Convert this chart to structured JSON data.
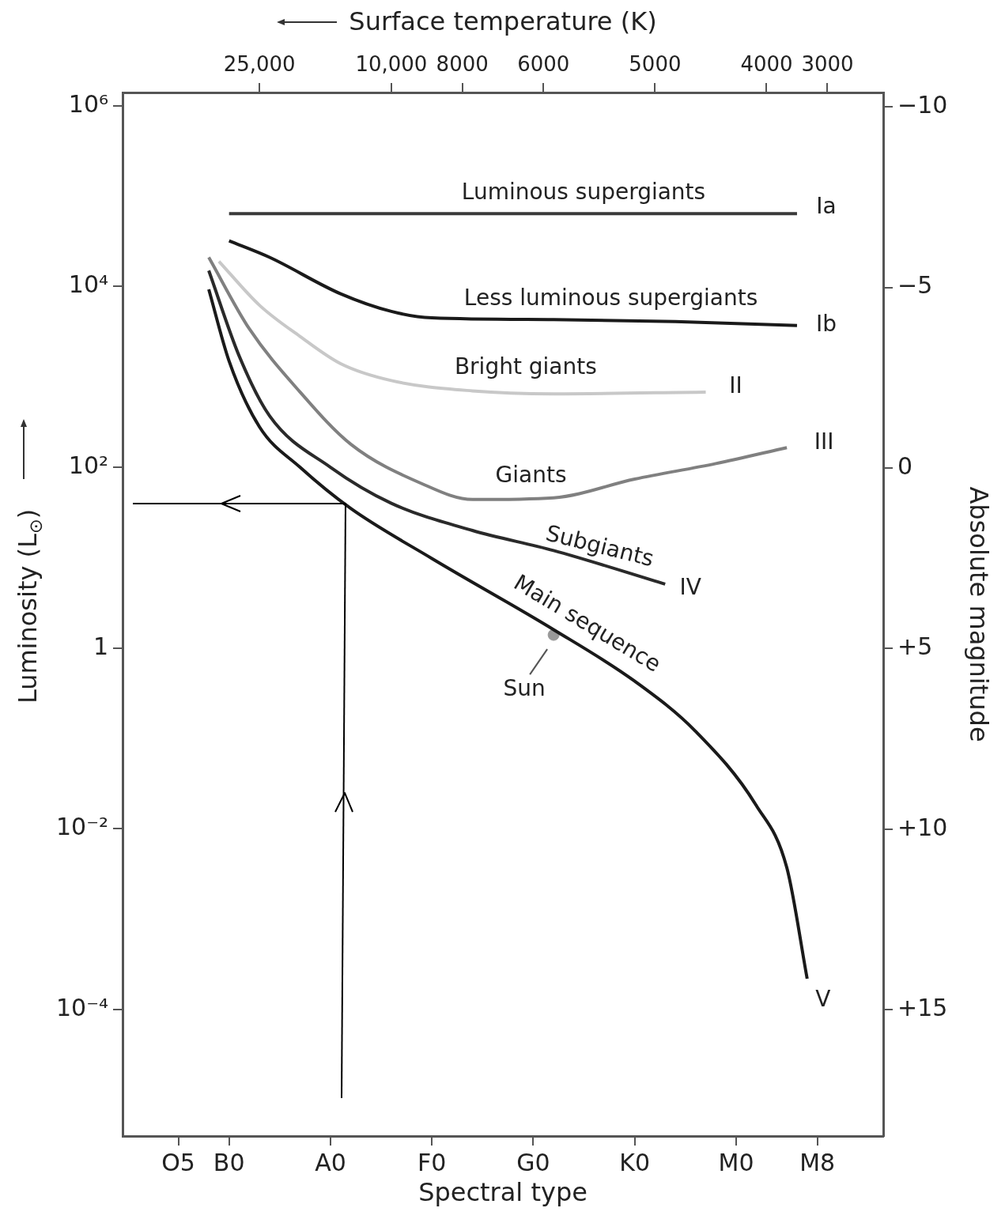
{
  "chart_data": {
    "type": "line",
    "xlabel": "Spectral type",
    "x2label": "Surface temperature (K)",
    "ylabel": "Luminosity (L$_{⊙}$)",
    "y2label": "Absolute magnitude",
    "categories": [
      null,
      null,
      null,
      null,
      null,
      "O5",
      null,
      null,
      null,
      null,
      "B0",
      null,
      null,
      null,
      null,
      null,
      null,
      null,
      null,
      null,
      "A0",
      null,
      null,
      null,
      null,
      null,
      null,
      null,
      null,
      null,
      "F0",
      null,
      null,
      null,
      null,
      null,
      null,
      null,
      null,
      null,
      "G0",
      null,
      null,
      null,
      null,
      null,
      null,
      null,
      null,
      null,
      "K0",
      null,
      null,
      null,
      null,
      null,
      null,
      null,
      null,
      null,
      "M0",
      null,
      null,
      null,
      null,
      null,
      null,
      null,
      "M8",
      null,
      null,
      null,
      null,
      null,
      null
    ],
    "log": "y",
    "ylim": [
      4e-06,
      1400000
    ],
    "yticks": [
      {
        "value": 0.0001,
        "label": "10⁻⁴"
      },
      {
        "value": 0.01,
        "label": "10⁻²"
      },
      1,
      {
        "value": 100,
        "label": "10²"
      },
      {
        "value": 10000,
        "label": "10⁴"
      },
      {
        "value": 1000000,
        "label": "10⁶"
      }
    ],
    "y2lim": [
      18.5,
      -10.4
    ],
    "y2ticks": [
      {
        "value": -10,
        "label": "−10"
      },
      {
        "value": -5,
        "label": "−5"
      },
      0,
      {
        "value": 5,
        "label": "+5"
      },
      {
        "value": 10,
        "label": "+10"
      },
      {
        "value": 15,
        "label": "+15"
      }
    ],
    "grid": false,
    "legend": false,
    "series": [
      {
        "name": "Ia",
        "color": "#3a3a3a",
        "values": [
          null,
          null,
          null,
          null,
          null,
          null,
          null,
          null,
          null,
          null,
          64000,
          null,
          null,
          null,
          null,
          null,
          null,
          null,
          null,
          null,
          null,
          null,
          null,
          null,
          null,
          null,
          null,
          null,
          null,
          null,
          null,
          null,
          null,
          null,
          null,
          null,
          null,
          null,
          null,
          null,
          null,
          null,
          null,
          null,
          null,
          null,
          null,
          null,
          null,
          null,
          null,
          null,
          null,
          null,
          null,
          null,
          null,
          null,
          null,
          null,
          null,
          null,
          null,
          null,
          null,
          null,
          64000,
          null,
          null,
          null,
          null,
          null,
          null,
          null,
          null
        ]
      },
      {
        "name": "Ib",
        "color": "#1a1a1a",
        "values": [
          null,
          null,
          null,
          null,
          null,
          null,
          null,
          null,
          null,
          null,
          32000,
          null,
          null,
          null,
          21000,
          null,
          null,
          null,
          null,
          null,
          null,
          8300,
          null,
          null,
          null,
          null,
          5300,
          null,
          null,
          null,
          4500,
          null,
          null,
          null,
          null,
          null,
          null,
          null,
          null,
          null,
          null,
          null,
          4300,
          null,
          null,
          null,
          null,
          null,
          null,
          null,
          null,
          null,
          null,
          null,
          4100,
          null,
          null,
          null,
          null,
          null,
          null,
          null,
          null,
          null,
          null,
          null,
          3700,
          null,
          null,
          null,
          null,
          null,
          null,
          null,
          null
        ]
      },
      {
        "name": "II",
        "color": "#c8c8c8",
        "values": [
          null,
          null,
          null,
          null,
          null,
          null,
          null,
          null,
          null,
          19000,
          null,
          null,
          null,
          6200,
          null,
          null,
          null,
          2800,
          null,
          null,
          null,
          1400,
          null,
          null,
          null,
          null,
          910,
          null,
          null,
          null,
          null,
          null,
          null,
          null,
          700,
          null,
          null,
          null,
          null,
          null,
          null,
          null,
          650,
          null,
          null,
          null,
          null,
          null,
          null,
          null,
          null,
          null,
          null,
          null,
          null,
          null,
          null,
          680,
          null,
          null,
          null,
          null,
          null,
          null,
          null,
          null,
          null,
          null,
          null,
          null,
          null,
          null,
          null,
          null,
          null
        ]
      },
      {
        "name": "III",
        "color": "#808080",
        "values": [
          null,
          null,
          null,
          null,
          null,
          null,
          null,
          null,
          21000,
          null,
          null,
          null,
          3400,
          null,
          null,
          null,
          null,
          680,
          null,
          null,
          null,
          null,
          180,
          null,
          null,
          null,
          null,
          null,
          null,
          66,
          null,
          null,
          null,
          null,
          44,
          null,
          null,
          null,
          null,
          null,
          null,
          null,
          46,
          null,
          null,
          null,
          null,
          null,
          null,
          null,
          74,
          null,
          null,
          null,
          null,
          null,
          null,
          null,
          110,
          null,
          null,
          null,
          null,
          null,
          null,
          165,
          null,
          null,
          null,
          null,
          null,
          null,
          null,
          null,
          null
        ]
      },
      {
        "name": "IV",
        "color": "#2a2a2a",
        "values": [
          null,
          null,
          null,
          null,
          null,
          null,
          null,
          null,
          15000,
          null,
          null,
          1700,
          null,
          null,
          370,
          null,
          null,
          null,
          null,
          null,
          100,
          null,
          null,
          null,
          null,
          null,
          40,
          null,
          null,
          null,
          null,
          null,
          null,
          null,
          20,
          null,
          null,
          null,
          null,
          null,
          null,
          null,
          12,
          null,
          null,
          null,
          null,
          null,
          null,
          null,
          null,
          null,
          null,
          5.1,
          null,
          null,
          null,
          null,
          null,
          null,
          null,
          null,
          null,
          null,
          null,
          null,
          null,
          null,
          null,
          null,
          null,
          null,
          null,
          null,
          null
        ]
      },
      {
        "name": "V",
        "color": "#1a1a1a",
        "values": [
          null,
          null,
          null,
          null,
          null,
          null,
          null,
          null,
          9300,
          null,
          1500,
          null,
          null,
          280,
          null,
          null,
          null,
          100,
          null,
          null,
          null,
          null,
          35,
          null,
          null,
          null,
          null,
          null,
          null,
          null,
          9.8,
          null,
          null,
          null,
          null,
          null,
          null,
          null,
          null,
          null,
          null,
          null,
          1.6,
          null,
          null,
          null,
          null,
          null,
          null,
          null,
          0.43,
          null,
          null,
          null,
          null,
          null,
          0.12,
          null,
          null,
          null,
          null,
          null,
          0.018,
          null,
          null,
          0.0037,
          null,
          0.00022,
          null,
          null,
          null,
          null,
          null,
          null,
          null
        ]
      },
      {
        "name": "Sun",
        "type": "scatter",
        "marker": "circle",
        "color": "#999999",
        "values": [
          null,
          null,
          null,
          null,
          null,
          null,
          null,
          null,
          null,
          null,
          null,
          null,
          null,
          null,
          null,
          null,
          null,
          null,
          null,
          null,
          null,
          null,
          null,
          null,
          null,
          null,
          null,
          null,
          null,
          null,
          null,
          null,
          null,
          null,
          null,
          null,
          null,
          null,
          null,
          null,
          null,
          null,
          1.4,
          null,
          null,
          null,
          null,
          null,
          null,
          null,
          null,
          null,
          null,
          null,
          null,
          null,
          null,
          null,
          null,
          null,
          null,
          null,
          null,
          null,
          null,
          null,
          null,
          null,
          null,
          null,
          null,
          null,
          null,
          null,
          null
        ]
      }
    ],
    "annotations": [
      "25,000",
      "10,000",
      "8000",
      "6000",
      "5000",
      "4000",
      "3000",
      "Luminous supergiants",
      "Less luminous supergiants",
      "Bright giants",
      "Giants",
      "Subgiants",
      "Main sequence"
    ]
  }
}
